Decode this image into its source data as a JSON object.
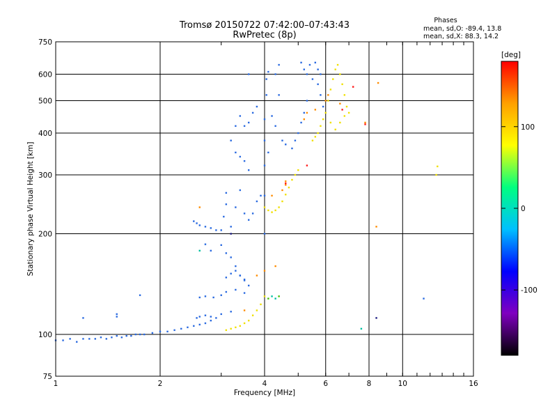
{
  "chart_data": {
    "type": "scatter",
    "title": "Tromsø 20150722 07:42:00–07:43:43",
    "subtitle": "RwPretec (8p)",
    "phases_box": {
      "heading": "Phases",
      "line1": "mean, sd,O: -89.4, 13.8",
      "line2": "mean, sd,X:  88.3, 14.2"
    },
    "xlabel": "Frequency [MHz]",
    "ylabel": "Stationary phase Virtual Height [km]",
    "x_scale": "log",
    "y_scale": "log",
    "xlim": [
      1,
      16
    ],
    "ylim": [
      75,
      750
    ],
    "x_ticks": [
      1,
      2,
      4,
      6,
      8,
      10,
      16
    ],
    "x_tick_labels": [
      "1",
      "2",
      "4",
      "6",
      "8",
      "10",
      "16"
    ],
    "y_ticks": [
      75,
      100,
      200,
      300,
      400,
      500,
      600,
      750
    ],
    "y_tick_labels": [
      "75",
      "100",
      "200",
      "300",
      "400",
      "500",
      "600",
      "750"
    ],
    "grid": true,
    "colorbar": {
      "label": "[deg]",
      "range": [
        -180,
        180
      ],
      "ticks": [
        100,
        0,
        -100
      ],
      "tick_labels": [
        "100",
        "0",
        "-100"
      ],
      "colormap": "rainbow",
      "colormap_hex": [
        "#000000",
        "#8000c0",
        "#0000ff",
        "#00c0ff",
        "#00ff80",
        "#ffff00",
        "#ffa000",
        "#ff0000"
      ]
    },
    "series": [
      {
        "color": "#2a6ae0",
        "points": [
          [
            1.0,
            96
          ],
          [
            1.05,
            96
          ],
          [
            1.1,
            97
          ],
          [
            1.15,
            95
          ],
          [
            1.2,
            97
          ],
          [
            1.25,
            97
          ],
          [
            1.3,
            97
          ],
          [
            1.35,
            98
          ],
          [
            1.4,
            97
          ],
          [
            1.45,
            98
          ],
          [
            1.5,
            99
          ],
          [
            1.55,
            98
          ],
          [
            1.6,
            99
          ],
          [
            1.65,
            99
          ],
          [
            1.7,
            100
          ],
          [
            1.75,
            100
          ],
          [
            1.8,
            100
          ],
          [
            1.9,
            101
          ],
          [
            2.0,
            102
          ],
          [
            2.1,
            102
          ],
          [
            2.2,
            103
          ],
          [
            2.3,
            104
          ],
          [
            2.4,
            105
          ],
          [
            2.5,
            106
          ],
          [
            2.6,
            107
          ],
          [
            2.7,
            108
          ],
          [
            2.8,
            110
          ],
          [
            1.2,
            112
          ],
          [
            1.5,
            113
          ],
          [
            1.5,
            115
          ],
          [
            1.75,
            131
          ],
          [
            2.55,
            112
          ],
          [
            2.6,
            113
          ],
          [
            2.7,
            114
          ],
          [
            2.8,
            113
          ],
          [
            2.9,
            112
          ],
          [
            3.0,
            115
          ],
          [
            3.2,
            117
          ],
          [
            2.6,
            129
          ],
          [
            2.7,
            130
          ],
          [
            2.85,
            129
          ],
          [
            3.0,
            131
          ],
          [
            3.1,
            134
          ],
          [
            3.3,
            136
          ],
          [
            3.5,
            133
          ],
          [
            2.5,
            218
          ],
          [
            2.55,
            215
          ],
          [
            2.6,
            212
          ],
          [
            2.7,
            210
          ],
          [
            2.8,
            208
          ],
          [
            2.9,
            205
          ],
          [
            2.7,
            186
          ],
          [
            2.8,
            178
          ],
          [
            3.0,
            185
          ],
          [
            3.1,
            175
          ],
          [
            3.2,
            170
          ],
          [
            3.3,
            160
          ],
          [
            3.4,
            150
          ],
          [
            3.5,
            145
          ],
          [
            3.6,
            140
          ],
          [
            3.1,
            148
          ],
          [
            3.2,
            152
          ],
          [
            3.3,
            155
          ],
          [
            3.4,
            150
          ],
          [
            3.5,
            146
          ],
          [
            3.0,
            205
          ],
          [
            3.05,
            225
          ],
          [
            3.1,
            245
          ],
          [
            3.1,
            265
          ],
          [
            3.2,
            210
          ],
          [
            3.3,
            240
          ],
          [
            3.4,
            270
          ],
          [
            3.5,
            230
          ],
          [
            3.6,
            220
          ],
          [
            3.7,
            230
          ],
          [
            3.8,
            250
          ],
          [
            3.9,
            260
          ],
          [
            3.2,
            380
          ],
          [
            3.3,
            420
          ],
          [
            3.4,
            450
          ],
          [
            3.5,
            420
          ],
          [
            3.6,
            430
          ],
          [
            3.7,
            460
          ],
          [
            3.8,
            480
          ],
          [
            3.3,
            350
          ],
          [
            3.4,
            340
          ],
          [
            3.5,
            330
          ],
          [
            3.6,
            310
          ],
          [
            3.6,
            600
          ],
          [
            4.0,
            200
          ],
          [
            4.0,
            260
          ],
          [
            4.0,
            320
          ],
          [
            4.0,
            380
          ],
          [
            4.0,
            440
          ],
          [
            4.05,
            520
          ],
          [
            4.05,
            580
          ],
          [
            4.1,
            610
          ],
          [
            4.1,
            350
          ],
          [
            4.2,
            450
          ],
          [
            4.3,
            600
          ],
          [
            4.4,
            640
          ],
          [
            4.4,
            520
          ],
          [
            4.3,
            420
          ],
          [
            4.5,
            380
          ],
          [
            4.6,
            370
          ],
          [
            4.8,
            360
          ],
          [
            4.9,
            380
          ],
          [
            5.0,
            400
          ],
          [
            5.1,
            430
          ],
          [
            5.2,
            460
          ],
          [
            5.3,
            500
          ],
          [
            5.1,
            650
          ],
          [
            5.2,
            620
          ],
          [
            5.3,
            600
          ],
          [
            5.4,
            640
          ],
          [
            5.5,
            580
          ],
          [
            5.6,
            650
          ],
          [
            5.7,
            560
          ],
          [
            5.8,
            520
          ],
          [
            5.9,
            480
          ],
          [
            5.7,
            620
          ],
          [
            5.8,
            600
          ],
          [
            11.5,
            128
          ]
        ]
      },
      {
        "color": "#f0e000",
        "points": [
          [
            3.1,
            103
          ],
          [
            3.2,
            104
          ],
          [
            3.3,
            105
          ],
          [
            3.4,
            106
          ],
          [
            3.5,
            108
          ],
          [
            3.6,
            110
          ],
          [
            3.7,
            114
          ],
          [
            3.8,
            118
          ],
          [
            3.9,
            123
          ],
          [
            4.0,
            130
          ],
          [
            4.0,
            240
          ],
          [
            4.1,
            235
          ],
          [
            4.2,
            232
          ],
          [
            4.3,
            235
          ],
          [
            4.4,
            240
          ],
          [
            4.5,
            250
          ],
          [
            4.6,
            262
          ],
          [
            4.7,
            275
          ],
          [
            4.8,
            290
          ],
          [
            4.9,
            300
          ],
          [
            5.0,
            310
          ],
          [
            5.5,
            380
          ],
          [
            5.6,
            390
          ],
          [
            5.7,
            400
          ],
          [
            5.8,
            420
          ],
          [
            5.9,
            440
          ],
          [
            6.0,
            460
          ],
          [
            6.1,
            500
          ],
          [
            6.2,
            540
          ],
          [
            6.3,
            580
          ],
          [
            6.4,
            620
          ],
          [
            6.5,
            640
          ],
          [
            6.6,
            600
          ],
          [
            6.7,
            560
          ],
          [
            6.8,
            520
          ],
          [
            6.9,
            480
          ],
          [
            7.0,
            460
          ],
          [
            6.2,
            430
          ],
          [
            6.4,
            410
          ],
          [
            6.6,
            430
          ],
          [
            6.8,
            450
          ],
          [
            12.5,
            300
          ],
          [
            12.6,
            318
          ]
        ]
      },
      {
        "color": "#ff8c00",
        "points": [
          [
            2.6,
            240
          ],
          [
            3.8,
            150
          ],
          [
            4.0,
            155
          ],
          [
            4.3,
            160
          ],
          [
            4.2,
            260
          ],
          [
            4.5,
            270
          ],
          [
            4.6,
            280
          ],
          [
            5.2,
            440
          ],
          [
            5.3,
            460
          ],
          [
            5.6,
            470
          ],
          [
            6.0,
            500
          ],
          [
            6.1,
            520
          ],
          [
            6.6,
            490
          ],
          [
            8.4,
            210
          ],
          [
            8.5,
            565
          ],
          [
            7.8,
            430
          ],
          [
            4.6,
            287
          ],
          [
            3.5,
            118
          ]
        ]
      },
      {
        "color": "#ff1a1a",
        "points": [
          [
            7.2,
            550
          ],
          [
            6.7,
            470
          ],
          [
            5.3,
            320
          ],
          [
            4.6,
            283
          ],
          [
            7.8,
            425
          ]
        ]
      },
      {
        "color": "#00c0a0",
        "points": [
          [
            2.6,
            178
          ],
          [
            4.2,
            130
          ],
          [
            4.3,
            128
          ],
          [
            7.6,
            104
          ]
        ]
      },
      {
        "color": "#40c000",
        "points": [
          [
            4.1,
            128
          ],
          [
            4.4,
            130
          ]
        ]
      },
      {
        "color": "#1a1a80",
        "points": [
          [
            8.4,
            112
          ],
          [
            3.2,
            200
          ]
        ]
      }
    ]
  }
}
